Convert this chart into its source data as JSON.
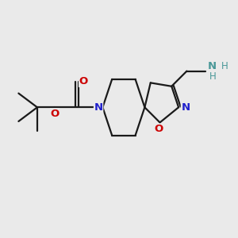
{
  "bg_color": "#eaeaea",
  "bond_color": "#1a1a1a",
  "N_color": "#2020cc",
  "O_color": "#cc0000",
  "NH2_color": "#4a9898",
  "line_width": 1.6,
  "figsize": [
    3.0,
    3.0
  ],
  "dpi": 100,
  "xlim": [
    0,
    10
  ],
  "ylim": [
    0,
    10
  ]
}
